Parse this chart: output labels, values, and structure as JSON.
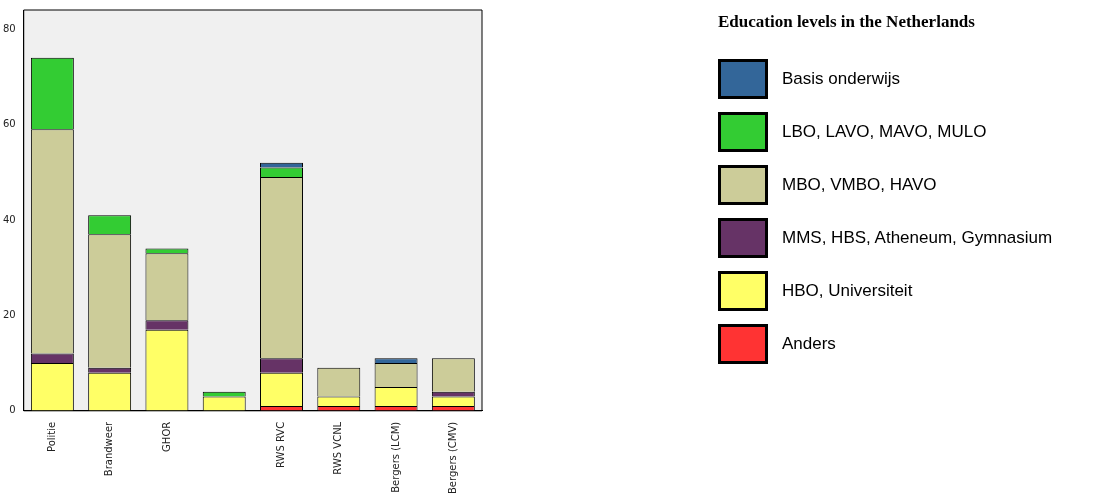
{
  "chart_data": {
    "type": "bar",
    "stacked": true,
    "legend": "right",
    "legend_title": "Education levels in the Netherlands",
    "categories": [
      "Politie",
      "Brandweer",
      "GHOR",
      null,
      "RWS RVC",
      "RWS VCNL",
      "Bergers (LCM)",
      "Bergers (CMV)"
    ],
    "ylim": [
      0,
      84
    ],
    "yticks": [
      0,
      20,
      40,
      60,
      80
    ],
    "series": [
      {
        "name": "Anders",
        "color": "#ff3333",
        "values": [
          0,
          0,
          0,
          0,
          1,
          1,
          1,
          1
        ]
      },
      {
        "name": "HBO, Universiteit",
        "color": "#ffff66",
        "values": [
          10,
          8,
          17,
          3,
          7,
          2,
          4,
          2
        ]
      },
      {
        "name": "MMS, HBS, Atheneum, Gymnasium",
        "color": "#663366",
        "values": [
          2,
          1,
          2,
          0,
          3,
          0,
          0,
          1
        ]
      },
      {
        "name": "MBO, VMBO, HAVO",
        "color": "#cccc99",
        "values": [
          47,
          28,
          14,
          0,
          38,
          6,
          5,
          7
        ]
      },
      {
        "name": "LBO, LAVO, MAVO, MULO",
        "color": "#33cc33",
        "values": [
          15,
          4,
          1,
          1,
          2,
          0,
          0,
          0
        ]
      },
      {
        "name": "Basis onderwijs",
        "color": "#336699",
        "values": [
          0,
          0,
          0,
          0,
          1,
          0,
          1,
          0
        ]
      }
    ]
  }
}
